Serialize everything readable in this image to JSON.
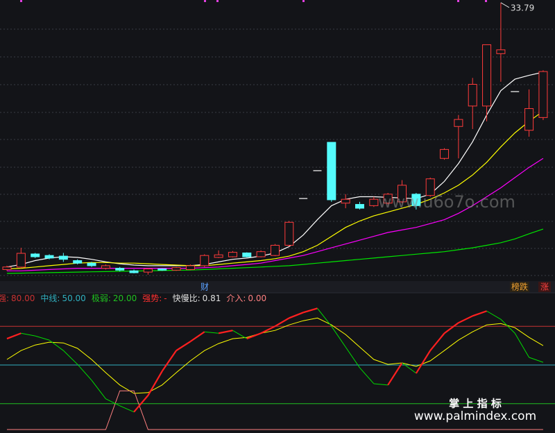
{
  "chart_data": [
    {
      "type": "candlestick",
      "ylim": [
        12,
        34
      ],
      "up_color": "#ff3b3b",
      "down_color": "#54fcfc",
      "open": [
        12.9,
        13.09,
        14.12,
        14.0,
        13.95,
        13.6,
        13.4,
        13.0,
        13.0,
        12.8,
        12.7,
        12.95,
        12.85,
        12.9,
        13.2,
        13.85,
        13.9,
        14.2,
        13.9,
        14.0,
        14.8,
        18.46,
        20.64,
        22.86,
        18.1,
        18.0,
        17.9,
        18.1,
        18.2,
        18.8,
        18.7,
        21.6,
        24.1,
        25.7,
        25.7,
        29.8,
        26.83,
        23.8,
        24.8
      ],
      "high": [
        13.2,
        14.6,
        14.2,
        14.1,
        14.2,
        13.7,
        13.5,
        13.3,
        13.1,
        12.9,
        13.0,
        13.0,
        13.1,
        13.3,
        14.1,
        14.4,
        14.35,
        14.25,
        14.4,
        14.9,
        16.7,
        18.46,
        20.64,
        22.86,
        18.8,
        18.2,
        18.6,
        18.9,
        19.9,
        18.9,
        20.1,
        22.4,
        25.0,
        27.9,
        30.5,
        33.79,
        26.83,
        27.0,
        28.5
      ],
      "low": [
        12.8,
        13.0,
        13.8,
        13.7,
        13.5,
        13.3,
        13.1,
        12.9,
        12.75,
        12.6,
        12.5,
        12.8,
        12.8,
        12.85,
        13.1,
        13.8,
        13.85,
        13.85,
        13.85,
        13.95,
        14.7,
        18.46,
        20.64,
        18.2,
        17.7,
        17.6,
        17.8,
        18.0,
        18.1,
        17.6,
        18.6,
        21.5,
        21.6,
        23.9,
        24.5,
        27.6,
        26.83,
        23.3,
        24.6
      ],
      "close": [
        13.1,
        14.17,
        13.9,
        13.8,
        13.7,
        13.4,
        13.2,
        13.2,
        12.85,
        12.65,
        12.95,
        12.85,
        13.05,
        13.2,
        14.0,
        14.05,
        14.25,
        13.9,
        14.3,
        14.8,
        16.6,
        18.46,
        20.64,
        18.36,
        18.4,
        17.7,
        18.4,
        18.8,
        19.5,
        17.9,
        20.0,
        22.3,
        24.65,
        27.4,
        30.5,
        30.1,
        26.83,
        25.5,
        28.4
      ],
      "series": [
        {
          "color": "#ffffff",
          "values": [
            13.1,
            13.3,
            13.6,
            13.8,
            13.9,
            13.85,
            13.7,
            13.5,
            13.35,
            13.25,
            13.2,
            13.2,
            13.2,
            13.2,
            13.3,
            13.5,
            13.7,
            13.8,
            13.95,
            14.2,
            14.7,
            15.6,
            16.8,
            17.9,
            18.4,
            18.6,
            18.6,
            18.55,
            18.5,
            18.45,
            18.8,
            19.8,
            21.2,
            22.9,
            25.0,
            26.9,
            27.8,
            28.1,
            28.35
          ]
        },
        {
          "color": "#ffff00",
          "values": [
            12.95,
            13.0,
            13.1,
            13.2,
            13.3,
            13.4,
            13.45,
            13.45,
            13.4,
            13.4,
            13.35,
            13.3,
            13.25,
            13.2,
            13.2,
            13.3,
            13.4,
            13.5,
            13.6,
            13.75,
            13.95,
            14.3,
            14.8,
            15.5,
            16.2,
            16.7,
            17.1,
            17.4,
            17.7,
            18.0,
            18.4,
            18.9,
            19.5,
            20.3,
            21.3,
            22.5,
            23.6,
            24.5,
            25.3
          ]
        },
        {
          "color": "#ff00ff",
          "values": [
            12.8,
            12.8,
            12.85,
            12.9,
            12.95,
            13.0,
            13.0,
            13.0,
            13.0,
            13.0,
            13.0,
            13.0,
            13.0,
            13.0,
            13.05,
            13.1,
            13.2,
            13.3,
            13.4,
            13.6,
            13.8,
            14.0,
            14.3,
            14.6,
            14.9,
            15.2,
            15.5,
            15.8,
            16.0,
            16.2,
            16.5,
            16.8,
            17.3,
            17.9,
            18.6,
            19.3,
            20.1,
            20.9,
            21.6
          ]
        },
        {
          "color": "#00e600",
          "values": [
            12.6,
            12.62,
            12.64,
            12.66,
            12.68,
            12.7,
            12.72,
            12.74,
            12.76,
            12.78,
            12.8,
            12.82,
            12.84,
            12.86,
            12.9,
            12.95,
            13.0,
            13.05,
            13.1,
            13.15,
            13.2,
            13.3,
            13.4,
            13.5,
            13.6,
            13.7,
            13.8,
            13.9,
            14.0,
            14.1,
            14.2,
            14.3,
            14.45,
            14.6,
            14.8,
            15.0,
            15.3,
            15.7,
            16.07
          ]
        }
      ],
      "high_label_index": 35,
      "band_text": "财",
      "buttons": [
        "榜跌",
        "涨"
      ]
    },
    {
      "type": "line",
      "ylim": [
        0,
        100
      ],
      "levels": [
        {
          "name": "强:",
          "value": 80,
          "label": "80.00",
          "color": "#c83232"
        },
        {
          "name": "中线:",
          "value": 50,
          "label": "50.00",
          "color": "#30b0c0"
        },
        {
          "name": "极弱:",
          "value": 20,
          "label": "20.00",
          "color": "#20c020"
        }
      ],
      "info": [
        {
          "name": "强势:",
          "label": "-",
          "color": "#ff3030"
        },
        {
          "name": "快慢比:",
          "value": 0.81,
          "color": "#e0e0e0"
        },
        {
          "name": "介入:",
          "value": 0,
          "label": "0.00",
          "color": "#ff8080"
        }
      ],
      "strength": {
        "up_color": "#ff2020",
        "down_color": "#00dd00",
        "values": [
          70.4,
          74.6,
          72.5,
          69.3,
          61.2,
          50.5,
          38.2,
          23.8,
          18.4,
          13.6,
          26.4,
          45.2,
          61.2,
          68.2,
          75.7,
          74.6,
          76.8,
          70.4,
          74.6,
          80,
          86.4,
          90.7,
          93.9,
          80,
          63.9,
          47.9,
          35.5,
          34.5,
          51.6,
          43.6,
          61.2,
          74.6,
          82.7,
          88.0,
          91.8,
          85.4,
          74.6,
          55.9,
          52.1
        ]
      },
      "series": [
        {
          "color": "#ffff00",
          "values": [
            54.3,
            61.2,
            65.5,
            67.7,
            67.1,
            62.9,
            54.3,
            44.1,
            34.5,
            28.0,
            28.6,
            34.5,
            44.1,
            53.2,
            61.2,
            66.6,
            70.4,
            71.4,
            74.6,
            76.8,
            81.1,
            84.3,
            86.4,
            81.1,
            73.6,
            63.9,
            54.3,
            50.5,
            51.6,
            48.9,
            53.2,
            61.2,
            69.3,
            75.7,
            81.1,
            82.1,
            78.9,
            71.4,
            65.0
          ]
        },
        {
          "color": "#ff8080",
          "values": [
            0,
            0,
            0,
            0,
            0,
            0,
            0,
            0,
            30,
            30,
            0,
            0,
            0,
            0,
            0,
            0,
            0,
            0,
            0,
            0,
            0,
            0,
            0,
            0,
            0,
            0,
            0,
            0,
            0,
            0,
            0,
            0,
            0,
            0,
            0,
            0,
            0,
            0,
            0
          ]
        }
      ]
    }
  ],
  "watermarks": {
    "site": "www.u6o7o.com",
    "brand": "掌 上 指 标",
    "url": "www.palmindex.com"
  }
}
